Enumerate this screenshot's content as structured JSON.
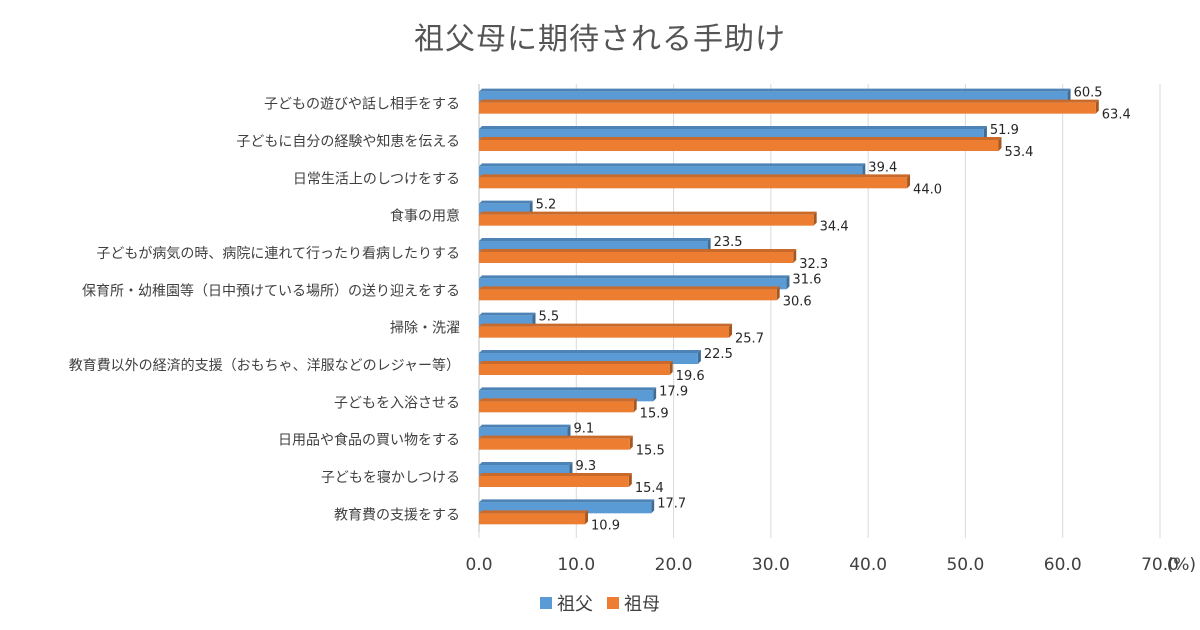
{
  "chart_data": {
    "type": "bar",
    "orientation": "horizontal",
    "title": "祖父母に期待される手助け",
    "unit_label": "(%)",
    "xlim": [
      0,
      70
    ],
    "x_ticks": [
      "0.0",
      "10.0",
      "20.0",
      "30.0",
      "40.0",
      "50.0",
      "60.0",
      "70.0"
    ],
    "grid": "vertical",
    "legend_position": "bottom",
    "categories": [
      "子どもの遊びや話し相手をする",
      "子どもに自分の経験や知恵を伝える",
      "日常生活上のしつけをする",
      "食事の用意",
      "子どもが病気の時、病院に連れて行ったり看病したりする",
      "保育所・幼稚園等（日中預けている場所）の送り迎えをする",
      "掃除・洗濯",
      "教育費以外の経済的支援（おもちゃ、洋服などのレジャー等）",
      "子どもを入浴させる",
      "日用品や食品の買い物をする",
      "子どもを寝かしつける",
      "教育費の支援をする"
    ],
    "series": [
      {
        "name": "祖父",
        "color": "#5b9bd5",
        "values": [
          60.5,
          51.9,
          39.4,
          5.2,
          23.5,
          31.6,
          5.5,
          22.5,
          17.9,
          9.1,
          9.3,
          17.7
        ],
        "labels": [
          "60.5",
          "51.9",
          "39.4",
          "5.2",
          "23.5",
          "31.6",
          "5.5",
          "22.5",
          "17.9",
          "9.1",
          "9.3",
          "17.7"
        ]
      },
      {
        "name": "祖母",
        "color": "#ed7d31",
        "values": [
          63.4,
          53.4,
          44.0,
          34.4,
          32.3,
          30.6,
          25.7,
          19.6,
          15.9,
          15.5,
          15.4,
          10.9
        ],
        "labels": [
          "63.4",
          "53.4",
          "44.0",
          "34.4",
          "32.3",
          "30.6",
          "25.7",
          "19.6",
          "15.9",
          "15.5",
          "15.4",
          "10.9"
        ]
      }
    ]
  }
}
